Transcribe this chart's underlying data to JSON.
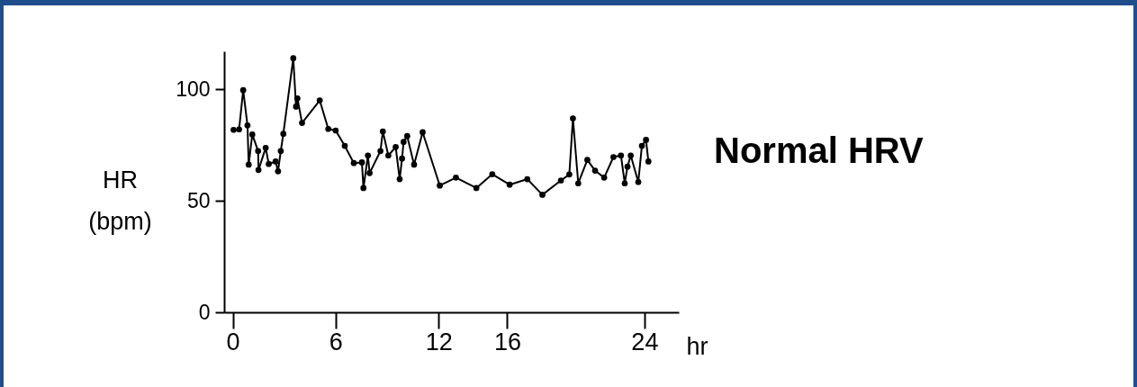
{
  "chart_data": {
    "type": "line",
    "title": "Normal HRV",
    "xlabel": "hr",
    "ylabel": "HR (bpm)",
    "x": [
      0.05,
      0.37,
      0.61,
      0.86,
      0.93,
      1.14,
      1.48,
      1.5,
      1.92,
      2.1,
      2.5,
      2.64,
      2.8,
      2.95,
      3.53,
      3.69,
      3.77,
      4.04,
      5.07,
      5.57,
      6.0,
      6.53,
      7.06,
      7.53,
      7.62,
      7.88,
      7.98,
      8.61,
      8.75,
      9.07,
      9.5,
      9.73,
      9.87,
      9.96,
      10.17,
      10.57,
      11.07,
      12.07,
      13.01,
      14.2,
      15.13,
      16.14,
      17.17,
      18.05,
      19.13,
      19.62,
      19.83,
      20.14,
      20.67,
      21.12,
      21.65,
      22.19,
      22.63,
      22.85,
      23.01,
      23.2,
      23.64,
      23.85,
      24.09,
      24.23
    ],
    "series": [
      {
        "color": "#000000",
        "values": [
          81.8,
          82,
          99.6,
          83.8,
          66.2,
          79.7,
          72.3,
          63.8,
          73.7,
          66.5,
          67.6,
          63.2,
          72.3,
          80,
          113.9,
          92.2,
          95.9,
          84.9,
          95,
          82.2,
          81.5,
          74.6,
          66.9,
          67.2,
          55.7,
          70.3,
          62.4,
          72.3,
          81.1,
          70.3,
          74.1,
          59.7,
          68.9,
          76.4,
          79,
          66.2,
          80.7,
          56.8,
          60.4,
          55.7,
          61.9,
          57.2,
          59.7,
          52.7,
          59.1,
          61.8,
          86.9,
          57.8,
          68.3,
          63.5,
          60.4,
          69.6,
          70.3,
          57.8,
          65.3,
          70.3,
          58.4,
          74.6,
          77.3,
          67.6
        ]
      }
    ],
    "xlim": [
      -0.5,
      26
    ],
    "xticks": [
      0,
      6,
      12,
      16,
      24
    ],
    "ylim": [
      0,
      117
    ],
    "yticks": [
      0,
      50,
      100
    ],
    "grid": false,
    "marker": "circle",
    "line_style": "solid"
  }
}
